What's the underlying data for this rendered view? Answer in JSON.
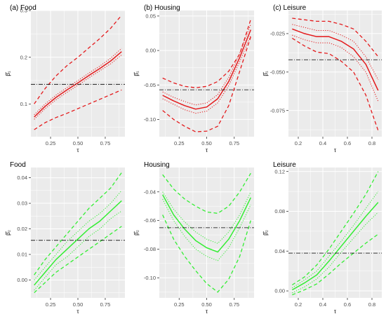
{
  "colors": {
    "red": "#e41a1c",
    "green": "#33ee33",
    "panel_bg": "#ebebeb",
    "grid": "#ffffff",
    "hline": "#000000"
  },
  "chart_data": [
    {
      "type": "line",
      "title": "(a) Food",
      "xlabel": "τ",
      "ylabel": "β̂₁",
      "xlim": [
        0.07,
        0.93
      ],
      "ylim": [
        0.03,
        0.3
      ],
      "grid": true,
      "xticks": [
        0.25,
        0.5,
        0.75
      ],
      "xtick_labels": [
        "0.25",
        "0.50",
        "0.75"
      ],
      "yticks": [
        0.1,
        0.2,
        0.3
      ],
      "ytick_labels": [
        "0.1",
        "0.2",
        "0.3"
      ],
      "color": "red",
      "hline": 0.142,
      "x": [
        0.1,
        0.2,
        0.3,
        0.4,
        0.5,
        0.6,
        0.7,
        0.8,
        0.9
      ],
      "series": [
        {
          "style": "solid",
          "values": [
            0.072,
            0.095,
            0.114,
            0.13,
            0.145,
            0.161,
            0.176,
            0.192,
            0.212
          ]
        },
        {
          "style": "dotted",
          "values": [
            0.077,
            0.1,
            0.119,
            0.135,
            0.15,
            0.166,
            0.181,
            0.198,
            0.219
          ]
        },
        {
          "style": "dotted",
          "values": [
            0.067,
            0.09,
            0.109,
            0.125,
            0.14,
            0.156,
            0.171,
            0.186,
            0.205
          ]
        },
        {
          "style": "dashed",
          "values": [
            0.1,
            0.133,
            0.16,
            0.182,
            0.2,
            0.22,
            0.24,
            0.262,
            0.29
          ]
        },
        {
          "style": "dashed",
          "values": [
            0.045,
            0.06,
            0.071,
            0.08,
            0.09,
            0.1,
            0.11,
            0.12,
            0.13
          ]
        }
      ]
    },
    {
      "type": "line",
      "title": "(b) Housing",
      "xlabel": "τ",
      "ylabel": "β̂₁",
      "xlim": [
        0.07,
        0.93
      ],
      "ylim": [
        -0.125,
        0.058
      ],
      "grid": true,
      "xticks": [
        0.25,
        0.5,
        0.75
      ],
      "xtick_labels": [
        "0.25",
        "0.50",
        "0.75"
      ],
      "yticks": [
        -0.1,
        -0.05,
        0.0,
        0.05
      ],
      "ytick_labels": [
        "-0.10",
        "-0.05",
        "0.00",
        "0.05"
      ],
      "color": "red",
      "hline": -0.057,
      "x": [
        0.1,
        0.2,
        0.3,
        0.4,
        0.5,
        0.6,
        0.7,
        0.8,
        0.9
      ],
      "series": [
        {
          "style": "solid",
          "values": [
            -0.065,
            -0.073,
            -0.08,
            -0.085,
            -0.082,
            -0.07,
            -0.045,
            -0.01,
            0.03
          ]
        },
        {
          "style": "dotted",
          "values": [
            -0.06,
            -0.068,
            -0.074,
            -0.079,
            -0.076,
            -0.064,
            -0.039,
            -0.004,
            0.038
          ]
        },
        {
          "style": "dotted",
          "values": [
            -0.07,
            -0.078,
            -0.086,
            -0.091,
            -0.088,
            -0.076,
            -0.051,
            -0.016,
            0.022
          ]
        },
        {
          "style": "dashed",
          "values": [
            -0.04,
            -0.047,
            -0.052,
            -0.054,
            -0.052,
            -0.045,
            -0.03,
            -0.005,
            0.045
          ]
        },
        {
          "style": "dashed",
          "values": [
            -0.087,
            -0.1,
            -0.11,
            -0.118,
            -0.117,
            -0.11,
            -0.08,
            -0.03,
            0.02
          ]
        }
      ]
    },
    {
      "type": "line",
      "title": "(c) Leisure",
      "xlabel": "τ",
      "ylabel": "β̂₁",
      "xlim": [
        0.12,
        0.88
      ],
      "ylim": [
        -0.092,
        -0.01
      ],
      "grid": true,
      "xticks": [
        0.2,
        0.4,
        0.6,
        0.8
      ],
      "xtick_labels": [
        "0.2",
        "0.4",
        "0.6",
        "0.8"
      ],
      "yticks": [
        -0.075,
        -0.05,
        -0.025
      ],
      "ytick_labels": [
        "-0.075",
        "-0.050",
        "-0.025"
      ],
      "color": "red",
      "hline": -0.042,
      "x": [
        0.15,
        0.25,
        0.35,
        0.45,
        0.55,
        0.65,
        0.75,
        0.85
      ],
      "series": [
        {
          "style": "solid",
          "values": [
            -0.022,
            -0.025,
            -0.027,
            -0.027,
            -0.03,
            -0.035,
            -0.045,
            -0.062
          ]
        },
        {
          "style": "dotted",
          "values": [
            -0.019,
            -0.021,
            -0.023,
            -0.023,
            -0.026,
            -0.03,
            -0.04,
            -0.055
          ]
        },
        {
          "style": "dotted",
          "values": [
            -0.026,
            -0.029,
            -0.031,
            -0.031,
            -0.034,
            -0.04,
            -0.05,
            -0.069
          ]
        },
        {
          "style": "dashed",
          "values": [
            -0.015,
            -0.016,
            -0.017,
            -0.017,
            -0.019,
            -0.022,
            -0.03,
            -0.04
          ]
        },
        {
          "style": "dashed",
          "values": [
            -0.028,
            -0.033,
            -0.037,
            -0.038,
            -0.043,
            -0.05,
            -0.065,
            -0.088
          ]
        }
      ]
    },
    {
      "type": "line",
      "title": "Food",
      "xlabel": "τ",
      "ylabel": "β̂₂",
      "xlim": [
        0.07,
        0.93
      ],
      "ylim": [
        -0.007,
        0.044
      ],
      "grid": true,
      "xticks": [
        0.25,
        0.5,
        0.75
      ],
      "xtick_labels": [
        "0.25",
        "0.50",
        "0.75"
      ],
      "yticks": [
        0.0,
        0.01,
        0.02,
        0.03,
        0.04
      ],
      "ytick_labels": [
        "0.00",
        "0.01",
        "0.02",
        "0.03",
        "0.04"
      ],
      "color": "green",
      "hline": 0.0155,
      "x": [
        0.1,
        0.2,
        0.3,
        0.4,
        0.5,
        0.6,
        0.7,
        0.8,
        0.9
      ],
      "series": [
        {
          "style": "solid",
          "values": [
            -0.002,
            0.003,
            0.008,
            0.012,
            0.016,
            0.02,
            0.023,
            0.027,
            0.031
          ]
        },
        {
          "style": "dotted",
          "values": [
            0.0,
            0.005,
            0.01,
            0.015,
            0.019,
            0.023,
            0.026,
            0.03,
            0.035
          ]
        },
        {
          "style": "dotted",
          "values": [
            -0.004,
            0.001,
            0.006,
            0.009,
            0.013,
            0.017,
            0.02,
            0.024,
            0.027
          ]
        },
        {
          "style": "dashed",
          "values": [
            0.002,
            0.008,
            0.013,
            0.018,
            0.023,
            0.028,
            0.032,
            0.036,
            0.042
          ]
        },
        {
          "style": "dashed",
          "values": [
            -0.005,
            -0.001,
            0.003,
            0.006,
            0.009,
            0.012,
            0.015,
            0.018,
            0.021
          ]
        }
      ]
    },
    {
      "type": "line",
      "title": "Housing",
      "xlabel": "τ",
      "ylabel": "β̂₂",
      "xlim": [
        0.07,
        0.93
      ],
      "ylim": [
        -0.114,
        -0.023
      ],
      "grid": true,
      "xticks": [
        0.25,
        0.5,
        0.75
      ],
      "xtick_labels": [
        "0.25",
        "0.50",
        "0.75"
      ],
      "yticks": [
        -0.1,
        -0.08,
        -0.06,
        -0.04
      ],
      "ytick_labels": [
        "-0.10",
        "-0.08",
        "-0.06",
        "-0.04"
      ],
      "color": "green",
      "hline": -0.065,
      "x": [
        0.1,
        0.2,
        0.3,
        0.4,
        0.5,
        0.6,
        0.7,
        0.8,
        0.9
      ],
      "series": [
        {
          "style": "solid",
          "values": [
            -0.042,
            -0.056,
            -0.066,
            -0.074,
            -0.079,
            -0.082,
            -0.073,
            -0.06,
            -0.044
          ]
        },
        {
          "style": "dotted",
          "values": [
            -0.04,
            -0.052,
            -0.061,
            -0.068,
            -0.073,
            -0.076,
            -0.068,
            -0.056,
            -0.04
          ]
        },
        {
          "style": "dotted",
          "values": [
            -0.045,
            -0.06,
            -0.071,
            -0.08,
            -0.085,
            -0.088,
            -0.079,
            -0.065,
            -0.049
          ]
        },
        {
          "style": "dashed",
          "values": [
            -0.028,
            -0.038,
            -0.045,
            -0.05,
            -0.054,
            -0.055,
            -0.05,
            -0.04,
            -0.027
          ]
        },
        {
          "style": "dashed",
          "values": [
            -0.056,
            -0.073,
            -0.085,
            -0.095,
            -0.104,
            -0.11,
            -0.101,
            -0.085,
            -0.06
          ]
        }
      ]
    },
    {
      "type": "line",
      "title": "Leisure",
      "xlabel": "τ",
      "ylabel": "β̂₂",
      "xlim": [
        0.12,
        0.88
      ],
      "ylim": [
        -0.007,
        0.124
      ],
      "grid": true,
      "xticks": [
        0.2,
        0.4,
        0.6,
        0.8
      ],
      "xtick_labels": [
        "0.2",
        "0.4",
        "0.6",
        "0.8"
      ],
      "yticks": [
        0.0,
        0.04,
        0.08,
        0.12
      ],
      "ytick_labels": [
        "0.00",
        "0.04",
        "0.08",
        "0.12"
      ],
      "color": "green",
      "hline": 0.038,
      "x": [
        0.15,
        0.25,
        0.35,
        0.45,
        0.55,
        0.65,
        0.75,
        0.85
      ],
      "series": [
        {
          "style": "solid",
          "values": [
            0.001,
            0.008,
            0.016,
            0.03,
            0.045,
            0.06,
            0.075,
            0.089
          ]
        },
        {
          "style": "dotted",
          "values": [
            0.003,
            0.011,
            0.02,
            0.035,
            0.05,
            0.066,
            0.083,
            0.1
          ]
        },
        {
          "style": "dotted",
          "values": [
            -0.002,
            0.004,
            0.012,
            0.024,
            0.039,
            0.053,
            0.067,
            0.079
          ]
        },
        {
          "style": "dashed",
          "values": [
            0.006,
            0.014,
            0.026,
            0.042,
            0.06,
            0.078,
            0.097,
            0.12
          ]
        },
        {
          "style": "dashed",
          "values": [
            -0.004,
            0.001,
            0.007,
            0.017,
            0.028,
            0.038,
            0.048,
            0.057
          ]
        }
      ]
    }
  ]
}
